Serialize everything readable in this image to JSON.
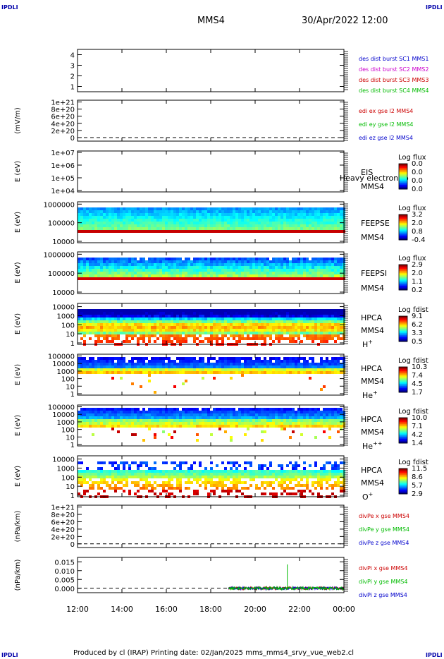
{
  "corner_label": "IPDLI",
  "header": {
    "spacecraft": "MMS4",
    "datetime": "30/Apr/2022 12:00"
  },
  "footer": {
    "text": "Produced by cl (IRAP)   Printing date: 02/Jan/2025   mms_mms4_srvy_vue_web2.cl"
  },
  "chart_data": {
    "type": "line",
    "time_axis": {
      "start": "12:00",
      "end": "00:00",
      "tick_labels": [
        "12:00",
        "14:00",
        "16:00",
        "18:00",
        "20:00",
        "22:00",
        "00:00"
      ],
      "tick_hours": [
        0,
        2,
        4,
        6,
        8,
        10,
        12
      ]
    },
    "panels": [
      {
        "id": "p1",
        "kind": "line",
        "ylabel": "",
        "yticks": [
          "1",
          "2",
          "3",
          "4"
        ],
        "ylim": [
          0.5,
          4.5
        ],
        "legend": [
          {
            "text": "des dist burst SC1 MMS1",
            "color": "#0000cc"
          },
          {
            "text": "des dist burst SC2 MMS2",
            "color": "#cc00cc"
          },
          {
            "text": "des dist burst SC3 MMS3",
            "color": "#cc0000"
          },
          {
            "text": "des dist burst SC4 MMS4",
            "color": "#00bb00"
          }
        ]
      },
      {
        "id": "p2",
        "kind": "line",
        "ylabel": "(mV/m)",
        "yticks": [
          "0",
          "2e+20",
          "4e+20",
          "6e+20",
          "8e+20",
          "1e+21"
        ],
        "ylim": [
          -1e+20,
          1.05e+21
        ],
        "zero_line": true,
        "legend": [
          {
            "text": "edi ex gse l2 MMS4",
            "color": "#cc0000"
          },
          {
            "text": "edi ey gse l2 MMS4",
            "color": "#00bb00"
          },
          {
            "text": "edi ez gse l2 MMS4",
            "color": "#0000cc"
          }
        ]
      },
      {
        "id": "p3",
        "kind": "spectrogram",
        "ylabel": "E (eV)",
        "yticks": [
          "1e+04",
          "1e+05",
          "1e+06",
          "1e+07"
        ],
        "labels": [
          "EIS",
          "MMS4"
        ],
        "overlay_label": "Heavy electron to",
        "cbar_title": "Log flux",
        "cbar_ticks": [
          "0.0",
          "0.0",
          "0.0",
          "0.0"
        ],
        "fill": "none"
      },
      {
        "id": "p4",
        "kind": "spectrogram",
        "ylabel": "E (eV)",
        "yticks": [
          "10000",
          "100000",
          "1000000"
        ],
        "labels": [
          "FEEPSE",
          "MMS4"
        ],
        "cbar_title": "Log flux",
        "cbar_ticks": [
          "3.2",
          "2.0",
          "0.8",
          "-0.4"
        ],
        "fill": "feepse"
      },
      {
        "id": "p5",
        "kind": "spectrogram",
        "ylabel": "E (eV)",
        "yticks": [
          "10000",
          "100000",
          "1000000"
        ],
        "labels": [
          "FEEPSI",
          "MMS4"
        ],
        "cbar_title": "Log flux",
        "cbar_ticks": [
          "2.9",
          "2.0",
          "1.1",
          "0.2"
        ],
        "fill": "feepsi"
      },
      {
        "id": "p6",
        "kind": "spectrogram",
        "ylabel": "E (eV)",
        "yticks": [
          "1",
          "10",
          "100",
          "1000",
          "10000"
        ],
        "labels": [
          "HPCA",
          "MMS4"
        ],
        "species": "H",
        "species_sup": "+",
        "cbar_title": "Log fdist",
        "cbar_ticks": [
          "9.1",
          "6.2",
          "3.3",
          "0.5"
        ],
        "fill": "hpca_h"
      },
      {
        "id": "p7",
        "kind": "spectrogram",
        "ylabel": "E (eV)",
        "yticks": [
          "1",
          "10",
          "100",
          "1000",
          "10000",
          "100000"
        ],
        "labels": [
          "HPCA",
          "MMS4"
        ],
        "species": "He",
        "species_sup": "+",
        "cbar_title": "Log fdist",
        "cbar_ticks": [
          "10.3",
          "7.4",
          "4.5",
          "1.7"
        ],
        "fill": "hpca_he"
      },
      {
        "id": "p8",
        "kind": "spectrogram",
        "ylabel": "E (eV)",
        "yticks": [
          "1",
          "10",
          "100",
          "1000",
          "10000",
          "100000"
        ],
        "labels": [
          "HPCA",
          "MMS4"
        ],
        "species": "He",
        "species_sup": "++",
        "cbar_title": "Log fdist",
        "cbar_ticks": [
          "10.0",
          "7.1",
          "4.2",
          "1.4"
        ],
        "fill": "hpca_he2"
      },
      {
        "id": "p9",
        "kind": "spectrogram",
        "ylabel": "E (eV)",
        "yticks": [
          "1",
          "10",
          "100",
          "1000",
          "10000"
        ],
        "labels": [
          "HPCA",
          "MMS4"
        ],
        "species": "O",
        "species_sup": "+",
        "cbar_title": "Log fdist",
        "cbar_ticks": [
          "11.5",
          "8.6",
          "5.7",
          "2.9"
        ],
        "fill": "hpca_o"
      },
      {
        "id": "p10",
        "kind": "line",
        "ylabel": "(nPa/km)",
        "yticks": [
          "0",
          "2e+20",
          "4e+20",
          "6e+20",
          "8e+20",
          "1e+21"
        ],
        "ylim": [
          -1e+20,
          1.05e+21
        ],
        "zero_line": true,
        "legend": [
          {
            "text": "divPe x gse MMS4",
            "color": "#cc0000"
          },
          {
            "text": "divPe y gse MMS4",
            "color": "#00bb00"
          },
          {
            "text": "divPe z gse MMS4",
            "color": "#0000cc"
          }
        ]
      },
      {
        "id": "p11",
        "kind": "line",
        "ylabel": "(nPa/km)",
        "yticks": [
          "0.000",
          "0.005",
          "0.010",
          "0.015"
        ],
        "ylim": [
          -0.0025,
          0.0175
        ],
        "zero_line": true,
        "series_start_hour": 6.8,
        "series_noise_amp": 0.0008,
        "spike": {
          "hour": 9.45,
          "value": 0.0135,
          "series": "y"
        },
        "legend": [
          {
            "text": "divPi x gse MMS4",
            "color": "#cc0000"
          },
          {
            "text": "divPi y gse MMS4",
            "color": "#00bb00"
          },
          {
            "text": "divPi z gse MMS4",
            "color": "#0000cc"
          }
        ]
      }
    ]
  }
}
